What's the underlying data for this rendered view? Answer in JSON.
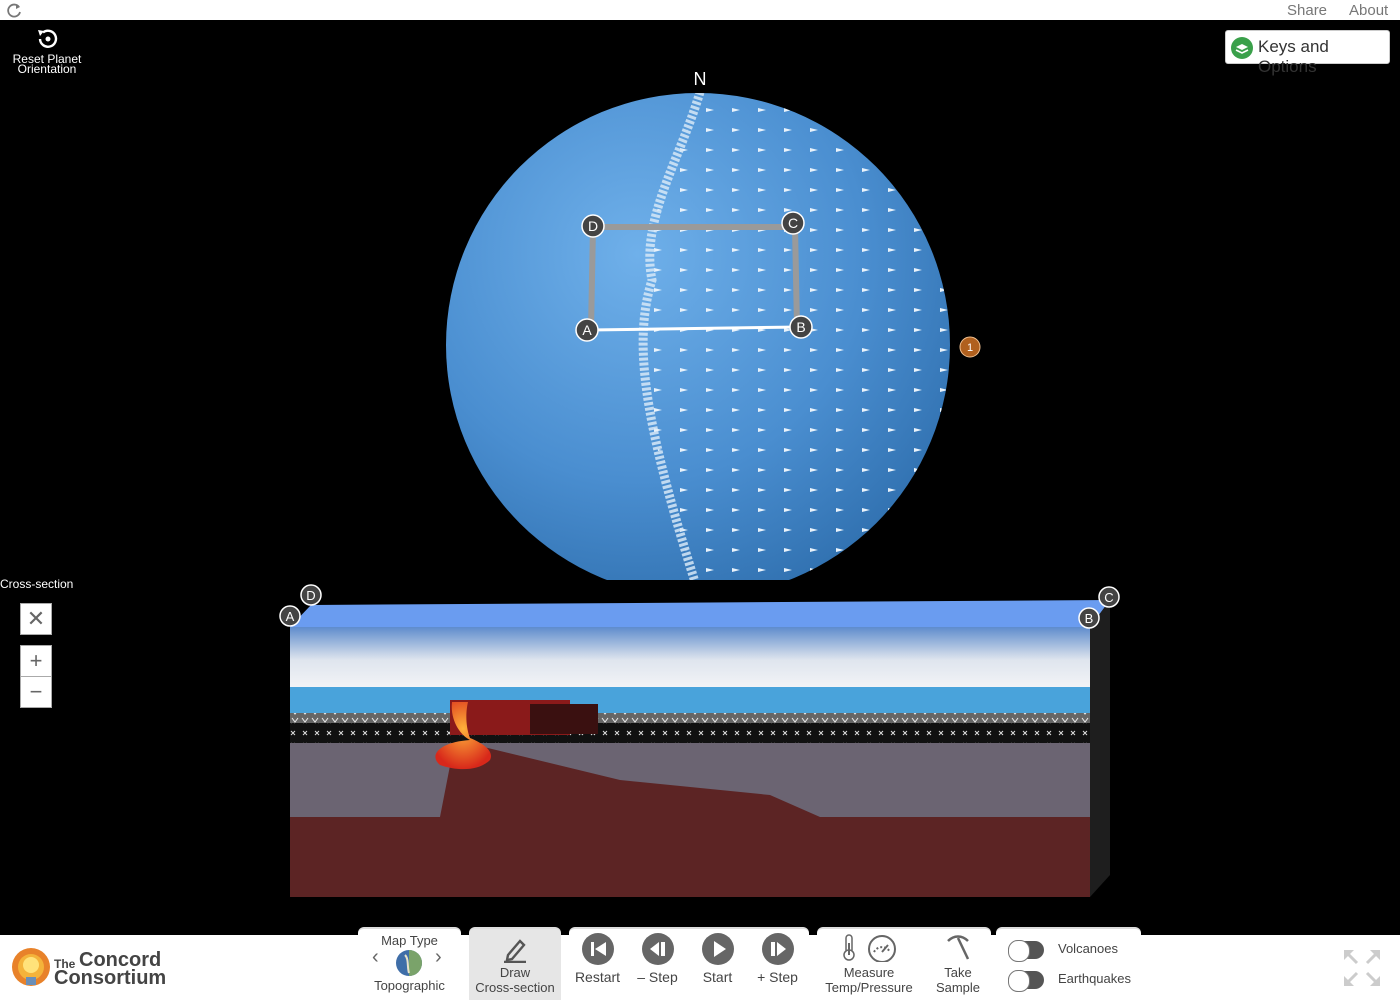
{
  "topbar": {
    "share_label": "Share",
    "about_label": "About"
  },
  "planet": {
    "reset_label": "Reset Planet\nOrientation",
    "north_label": "N",
    "keys_label": "Keys and Options",
    "points": [
      "A",
      "B",
      "C",
      "D"
    ],
    "marker_label": "1"
  },
  "cross_section": {
    "title": "Cross-section",
    "close_label": "✕",
    "zoom_in_label": "+",
    "zoom_out_label": "−",
    "points": [
      "A",
      "B",
      "C",
      "D"
    ]
  },
  "bottom": {
    "logo": {
      "the": "The",
      "line1": "Concord",
      "line2": "Consortium"
    },
    "map_type": {
      "title": "Map Type",
      "value": "Topographic"
    },
    "draw_label": "Draw\nCross-section",
    "restart_label": "Restart",
    "step_back_label": "– Step",
    "start_label": "Start",
    "step_forward_label": "+ Step",
    "measure_label": "Measure\nTemp/Pressure",
    "sample_label": "Take\nSample",
    "volcanoes_label": "Volcanoes",
    "earthquakes_label": "Earthquakes"
  },
  "colors": {
    "ocean": "#4a8ed0",
    "magma": "#e23a1a",
    "mantle": "#5c2424",
    "lithosphere": "#6b6472",
    "logo_orange": "#e8822a"
  }
}
